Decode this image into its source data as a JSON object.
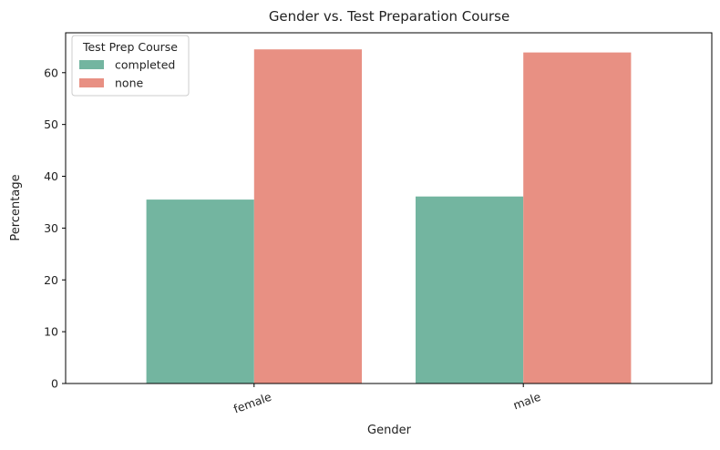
{
  "chart_data": {
    "type": "bar",
    "title": "Gender vs. Test Preparation Course",
    "xlabel": "Gender",
    "ylabel": "Percentage",
    "categories": [
      "female",
      "male"
    ],
    "series": [
      {
        "name": "completed",
        "values": [
          35.5,
          36.1
        ],
        "color": "#73b5a0"
      },
      {
        "name": "none",
        "values": [
          64.5,
          63.9
        ],
        "color": "#e89083"
      }
    ],
    "ylim": [
      0,
      67.7
    ],
    "yticks": [
      0,
      10,
      20,
      30,
      40,
      50,
      60
    ],
    "legend": {
      "title": "Test Prep Course",
      "position": "top-left"
    },
    "grid": false
  }
}
